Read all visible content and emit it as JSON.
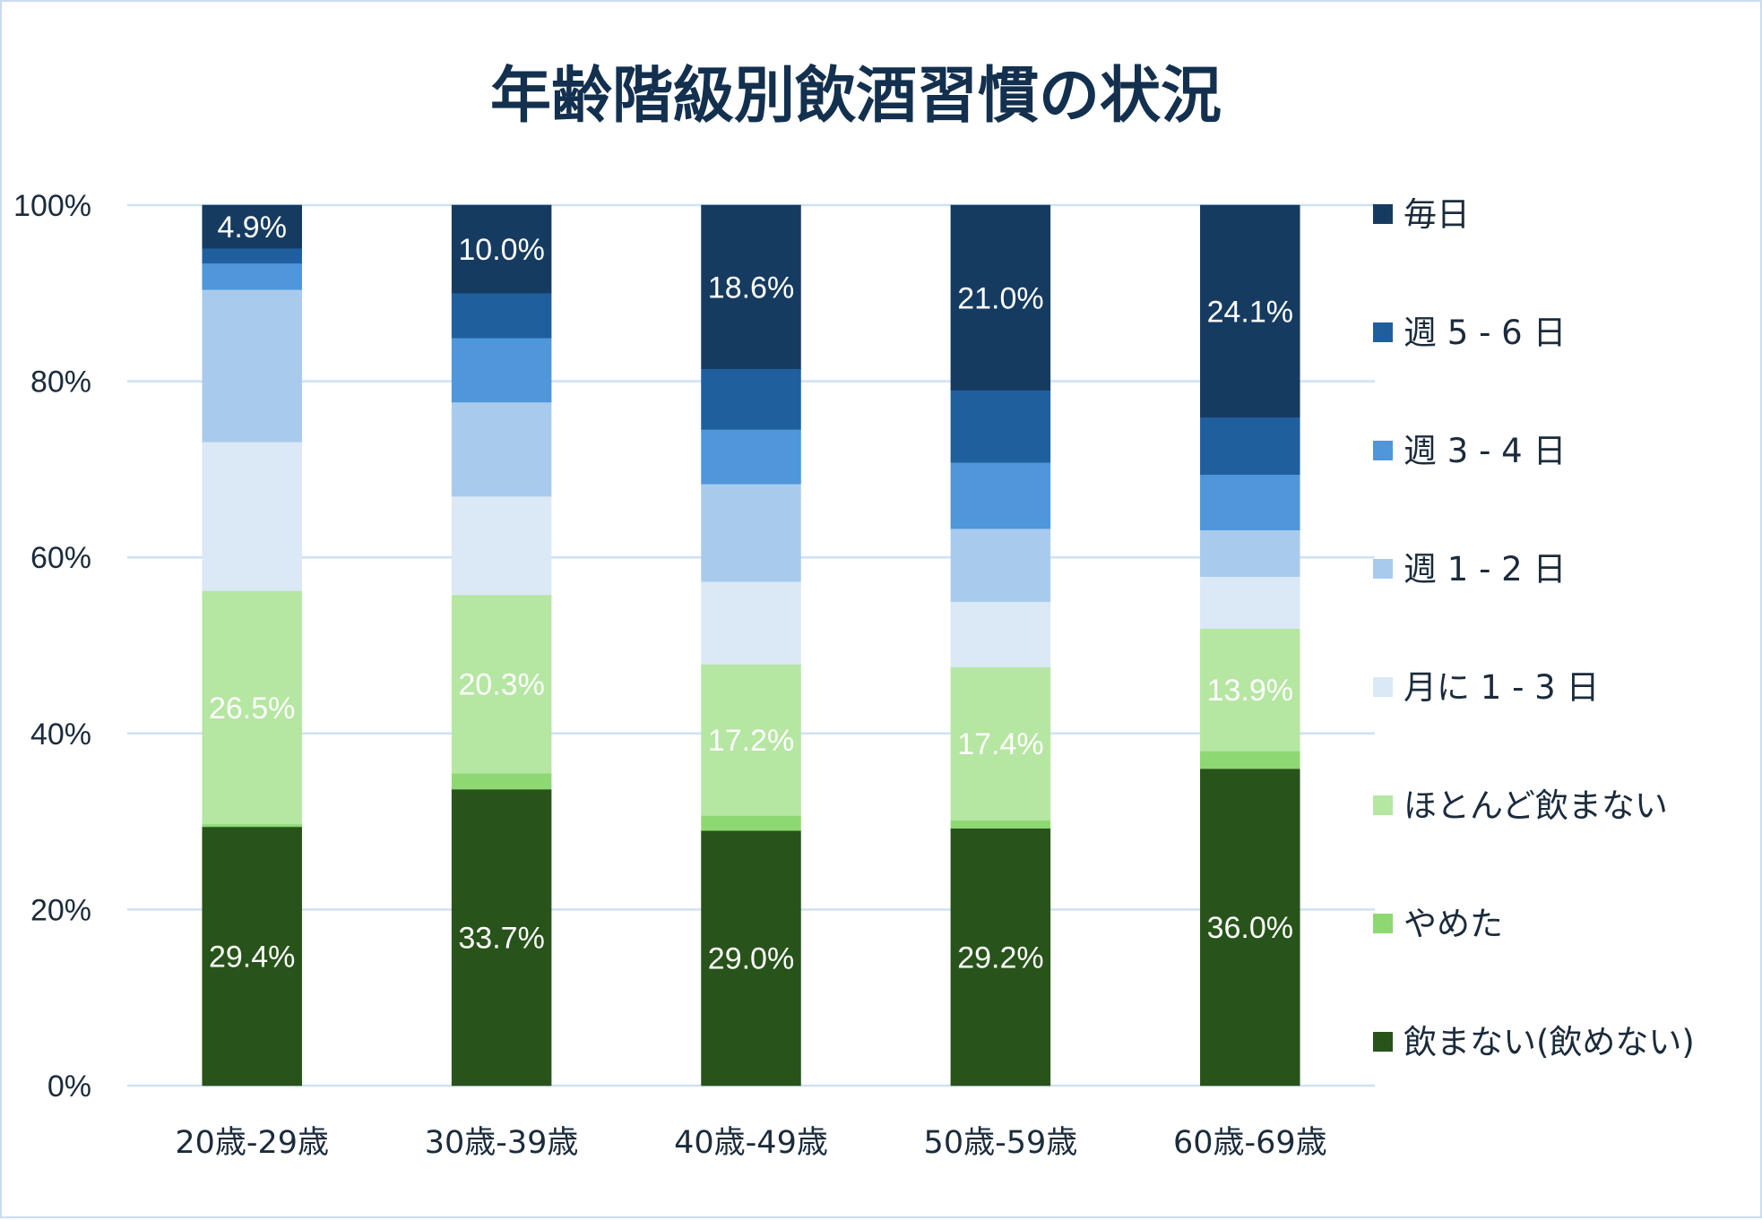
{
  "chart_data": {
    "type": "bar",
    "stacked": "percent",
    "title": "年齢階級別飲酒習慣の状況",
    "categories": [
      "20歳-29歳",
      "30歳-39歳",
      "40歳-49歳",
      "50歳-59歳",
      "60歳-69歳"
    ],
    "ylim": [
      0,
      100
    ],
    "yticks": [
      "0%",
      "20%",
      "40%",
      "60%",
      "80%",
      "100%"
    ],
    "grid": true,
    "legend_position": "right",
    "series": [
      {
        "name": "飲まない(飲めない)",
        "color": "#28531a",
        "values": [
          29.4,
          33.7,
          29.0,
          29.2,
          36.0
        ],
        "labels": [
          "29.4%",
          "33.7%",
          "29.0%",
          "29.2%",
          "36.0%"
        ]
      },
      {
        "name": "やめた",
        "color": "#8ed873",
        "values": [
          0.3,
          1.8,
          1.7,
          0.9,
          2.0
        ],
        "labels": []
      },
      {
        "name": "ほとんど飲まない",
        "color": "#b5e6a2",
        "values": [
          26.5,
          20.3,
          17.2,
          17.4,
          13.9
        ],
        "labels": [
          "26.5%",
          "20.3%",
          "17.2%",
          "17.4%",
          "13.9%"
        ]
      },
      {
        "name": "月に 1 - 3 日",
        "color": "#dbe8f6",
        "values": [
          16.9,
          11.2,
          9.4,
          7.4,
          5.9
        ],
        "labels": []
      },
      {
        "name": "週 1 - 2 日",
        "color": "#a8cbed",
        "values": [
          17.3,
          10.7,
          11.1,
          8.3,
          5.3
        ],
        "labels": []
      },
      {
        "name": "週 3 - 4 日",
        "color": "#4f96da",
        "values": [
          3.0,
          7.3,
          6.2,
          7.5,
          6.3
        ],
        "labels": []
      },
      {
        "name": "週 5 - 6 日",
        "color": "#205f9e",
        "values": [
          1.7,
          5.1,
          6.9,
          8.2,
          6.5
        ],
        "labels": []
      },
      {
        "name": "毎日",
        "color": "#163b61",
        "values": [
          4.9,
          10.0,
          18.6,
          21.0,
          24.1
        ],
        "labels": [
          "4.9%",
          "10.0%",
          "18.6%",
          "21.0%",
          "24.1%"
        ]
      }
    ]
  }
}
